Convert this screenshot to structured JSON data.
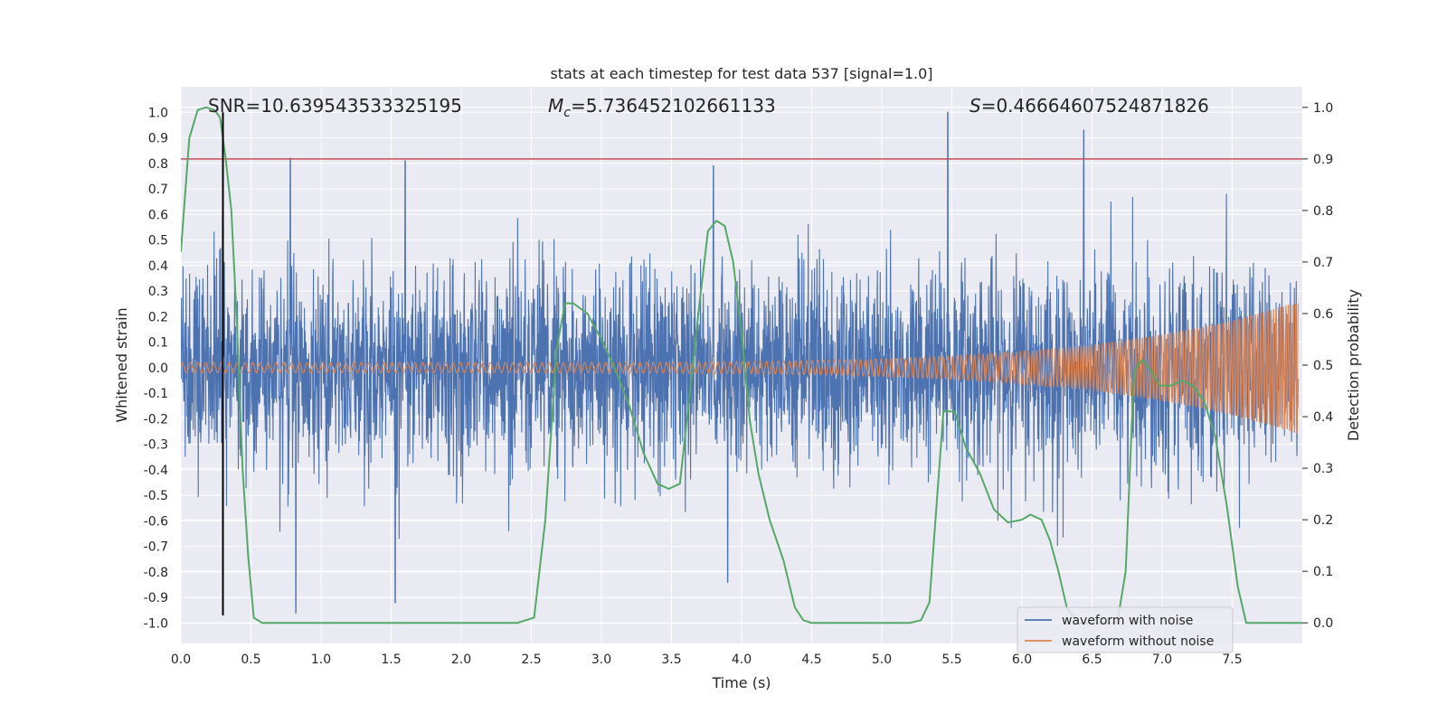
{
  "chart_data": {
    "type": "line",
    "title": "stats at each timestep for test data 537 [signal=1.0]",
    "xlabel": "Time (s)",
    "ylabel_left": "Whitened strain",
    "ylabel_right": "Detection probability",
    "xlim": [
      0.0,
      8.0
    ],
    "ylim_left": [
      -1.08,
      1.1
    ],
    "ylim_right": [
      -0.04,
      1.04
    ],
    "xticks": [
      "0.0",
      "0.5",
      "1.0",
      "1.5",
      "2.0",
      "2.5",
      "3.0",
      "3.5",
      "4.0",
      "4.5",
      "5.0",
      "5.5",
      "6.0",
      "6.5",
      "7.0",
      "7.5"
    ],
    "yticks_left": [
      "-1.0",
      "-0.9",
      "-0.8",
      "-0.7",
      "-0.6",
      "-0.5",
      "-0.4",
      "-0.3",
      "-0.2",
      "-0.1",
      "0.0",
      "0.1",
      "0.2",
      "0.3",
      "0.4",
      "0.5",
      "0.6",
      "0.7",
      "0.8",
      "0.9",
      "1.0"
    ],
    "yticks_right": [
      "0.0",
      "0.1",
      "0.2",
      "0.3",
      "0.4",
      "0.5",
      "0.6",
      "0.7",
      "0.8",
      "0.9",
      "1.0"
    ],
    "annotations": {
      "snr": "SNR=10.639543533325195",
      "mc_symbol": "M",
      "mc_sub": "c",
      "mc_value": "=5.736452102661133",
      "s_symbol": "S",
      "s_value": "=0.46664607524871826"
    },
    "threshold": {
      "value": 0.9,
      "axis": "right",
      "color": "#c44e52"
    },
    "marker_line": {
      "x": 0.3,
      "y_from": -0.97,
      "y_to": 1.0,
      "color": "#000000"
    },
    "series": [
      {
        "name": "waveform with noise",
        "color": "#4c72b0",
        "axis": "left",
        "kind": "noisy-strain",
        "envelope_approx": 0.5,
        "notable_peaks": [
          [
            0.78,
            0.82
          ],
          [
            1.6,
            0.81
          ],
          [
            3.8,
            0.79
          ],
          [
            5.47,
            1.0
          ],
          [
            6.44,
            0.93
          ],
          [
            0.82,
            -0.96
          ],
          [
            1.53,
            -0.92
          ],
          [
            3.9,
            -0.84
          ]
        ]
      },
      {
        "name": "waveform without noise",
        "color": "#dd8452",
        "axis": "left",
        "kind": "chirp",
        "amplitude_start": 0.02,
        "amplitude_end": 0.26,
        "x_end": 7.97
      },
      {
        "name": "detection probability",
        "color": "#55a868",
        "axis": "right",
        "kind": "line",
        "x": [
          0.0,
          0.06,
          0.12,
          0.18,
          0.24,
          0.28,
          0.32,
          0.36,
          0.4,
          0.44,
          0.48,
          0.52,
          0.58,
          1.0,
          2.0,
          2.4,
          2.52,
          2.6,
          2.68,
          2.74,
          2.8,
          2.9,
          3.0,
          3.1,
          3.2,
          3.3,
          3.4,
          3.48,
          3.56,
          3.62,
          3.7,
          3.76,
          3.82,
          3.88,
          3.94,
          4.0,
          4.06,
          4.12,
          4.2,
          4.3,
          4.38,
          4.44,
          4.5,
          5.0,
          5.2,
          5.28,
          5.34,
          5.44,
          5.52,
          5.6,
          5.7,
          5.8,
          5.9,
          6.0,
          6.06,
          6.14,
          6.2,
          6.26,
          6.32,
          6.4,
          6.5,
          6.6,
          6.68,
          6.74,
          6.8,
          6.86,
          6.92,
          6.98,
          7.06,
          7.14,
          7.22,
          7.3,
          7.38,
          7.46,
          7.54,
          7.6,
          7.7,
          8.0
        ],
        "y": [
          0.72,
          0.94,
          0.995,
          1.0,
          0.995,
          0.98,
          0.9,
          0.8,
          0.58,
          0.3,
          0.13,
          0.01,
          0.0,
          0.0,
          0.0,
          0.0,
          0.01,
          0.2,
          0.53,
          0.62,
          0.62,
          0.6,
          0.55,
          0.49,
          0.42,
          0.33,
          0.27,
          0.26,
          0.27,
          0.42,
          0.62,
          0.76,
          0.78,
          0.77,
          0.7,
          0.56,
          0.39,
          0.29,
          0.2,
          0.12,
          0.03,
          0.005,
          0.0,
          0.0,
          0.0,
          0.005,
          0.04,
          0.41,
          0.41,
          0.34,
          0.29,
          0.22,
          0.195,
          0.2,
          0.21,
          0.2,
          0.16,
          0.1,
          0.03,
          0.0,
          0.0,
          0.0,
          0.0,
          0.1,
          0.49,
          0.51,
          0.49,
          0.46,
          0.46,
          0.47,
          0.46,
          0.43,
          0.36,
          0.23,
          0.07,
          0.0,
          0.0,
          0.0
        ]
      }
    ],
    "legend": {
      "placement": "lower-right",
      "entries": [
        "waveform with noise",
        "waveform without noise"
      ]
    },
    "grid": true
  }
}
